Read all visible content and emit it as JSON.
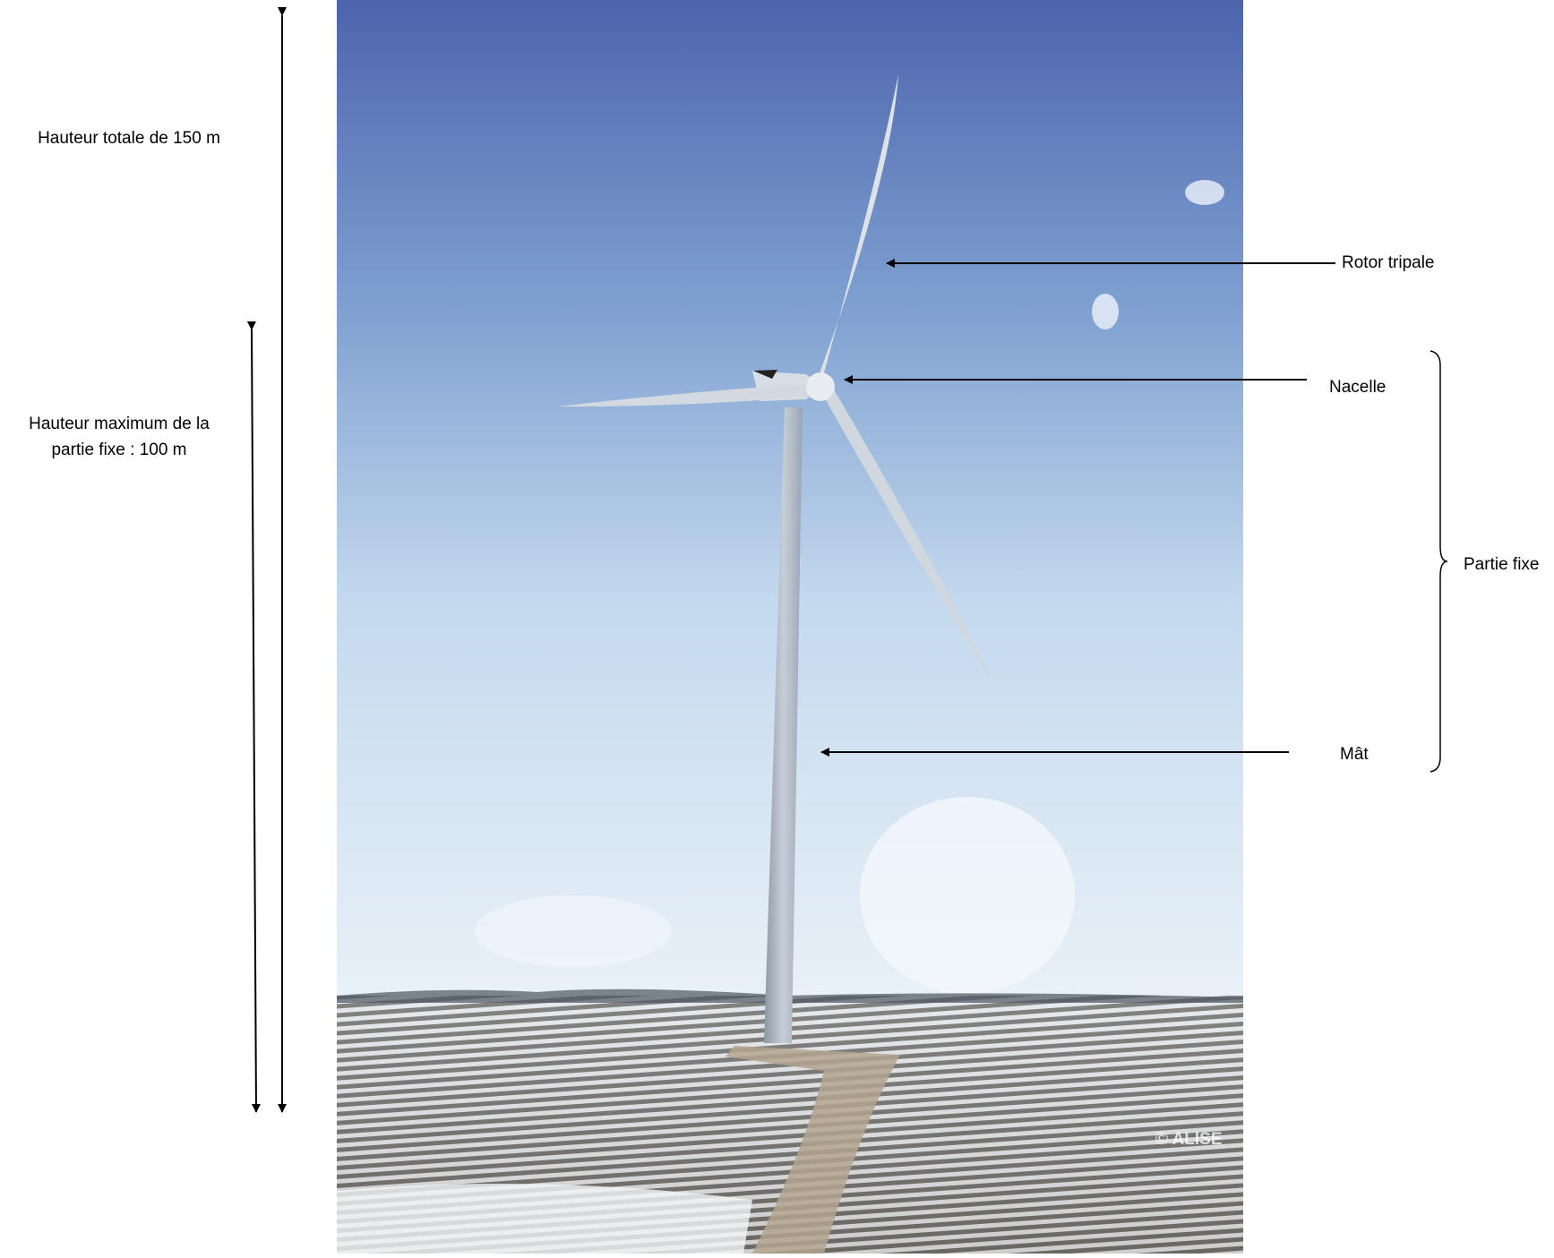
{
  "labels": {
    "total_height": "Hauteur totale de 150 m",
    "fixed_height": [
      "Hauteur maximum de la",
      "partie fixe : 100 m"
    ],
    "rotor": "Rotor tripale",
    "nacelle": "Nacelle",
    "mast": "Mât",
    "fixed_part": "Partie fixe",
    "credit": "© ALISE"
  }
}
